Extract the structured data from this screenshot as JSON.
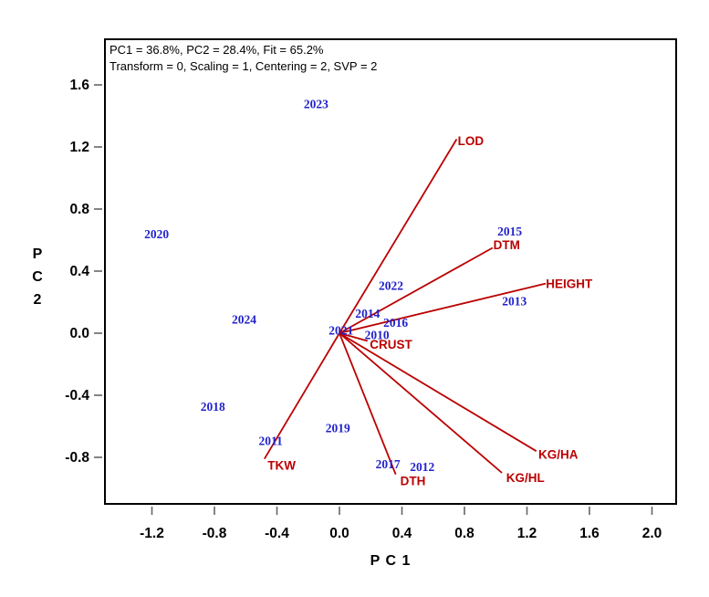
{
  "chart_data": {
    "type": "scatter",
    "subtype": "pca-biplot",
    "stats_line1": "PC1 = 36.8%, PC2 = 28.4%, Fit = 65.2%",
    "stats_line2": "Transform = 0, Scaling = 1, Centering = 2, SVP = 2",
    "x_axis": {
      "label": "P C 1",
      "ticks": [
        -1.2,
        -0.8,
        -0.4,
        0.0,
        0.4,
        0.8,
        1.2,
        1.6,
        2.0
      ],
      "range": [
        -1.51,
        2.16
      ]
    },
    "y_axis": {
      "label": "P C 2",
      "ticks": [
        1.6,
        1.2,
        0.8,
        0.4,
        0.0,
        -0.4,
        -0.8
      ],
      "range": [
        -1.11,
        1.9
      ]
    },
    "grid": false,
    "legend": false,
    "colors": {
      "scores": "#2222CC",
      "vectors": "#BB0000",
      "axis": "#000000",
      "ticks": "#666666"
    },
    "scores": [
      {
        "label": "2010",
        "x": 0.24,
        "y": -0.01
      },
      {
        "label": "2011",
        "x": -0.44,
        "y": -0.69
      },
      {
        "label": "2012",
        "x": 0.53,
        "y": -0.86
      },
      {
        "label": "2013",
        "x": 1.12,
        "y": 0.21
      },
      {
        "label": "2014",
        "x": 0.18,
        "y": 0.13
      },
      {
        "label": "2015",
        "x": 1.09,
        "y": 0.66
      },
      {
        "label": "2016",
        "x": 0.36,
        "y": 0.07
      },
      {
        "label": "2017",
        "x": 0.31,
        "y": -0.84
      },
      {
        "label": "2018",
        "x": -0.81,
        "y": -0.47
      },
      {
        "label": "2019",
        "x": -0.01,
        "y": -0.61
      },
      {
        "label": "2020",
        "x": -1.17,
        "y": 0.64
      },
      {
        "label": "2021",
        "x": 0.01,
        "y": 0.02
      },
      {
        "label": "2022",
        "x": 0.33,
        "y": 0.31
      },
      {
        "label": "2023",
        "x": -0.15,
        "y": 1.48
      },
      {
        "label": "2024",
        "x": -0.61,
        "y": 0.09
      }
    ],
    "vectors": [
      {
        "label": "LOD",
        "x": 0.75,
        "y": 1.25,
        "label_x": 0.84,
        "label_y": 1.24
      },
      {
        "label": "DTM",
        "x": 0.98,
        "y": 0.55,
        "label_x": 1.07,
        "label_y": 0.57
      },
      {
        "label": "HEIGHT",
        "x": 1.32,
        "y": 0.32,
        "label_x": 1.47,
        "label_y": 0.32
      },
      {
        "label": "CRUST",
        "x": 0.18,
        "y": -0.05,
        "label_x": 0.33,
        "label_y": -0.07
      },
      {
        "label": "KG/HA",
        "x": 1.26,
        "y": -0.76,
        "label_x": 1.4,
        "label_y": -0.78
      },
      {
        "label": "KG/HL",
        "x": 1.04,
        "y": -0.9,
        "label_x": 1.19,
        "label_y": -0.93
      },
      {
        "label": "DTH",
        "x": 0.36,
        "y": -0.91,
        "label_x": 0.47,
        "label_y": -0.95
      },
      {
        "label": "TKW",
        "x": -0.48,
        "y": -0.81,
        "label_x": -0.37,
        "label_y": -0.85
      }
    ]
  }
}
